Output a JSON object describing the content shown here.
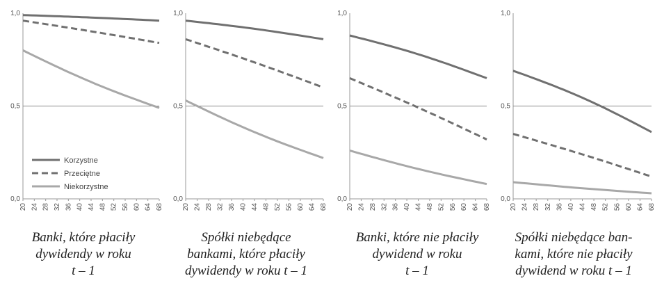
{
  "colors": {
    "korzystne": "#707070",
    "przecietne": "#707070",
    "niekorzystne": "#a8a8a8",
    "axis": "#9a9a9a",
    "tick_text": "#555555"
  },
  "legend": {
    "items": [
      {
        "label": "Korzystne",
        "style": "solid-dark"
      },
      {
        "label": "Przeciętne",
        "style": "dashed"
      },
      {
        "label": "Niekorzystne",
        "style": "solid-light"
      }
    ]
  },
  "captions": [
    {
      "lines": [
        "Banki, które płaciły",
        "dywidendy w roku",
        "t – 1"
      ]
    },
    {
      "lines": [
        "Spółki niebędące",
        "bankami, które płaciły",
        "dywidendy w roku t – 1"
      ]
    },
    {
      "lines": [
        "Banki, które nie płaciły",
        "dywidend w roku",
        "t – 1"
      ]
    },
    {
      "lines": [
        "Spółki niebędące ban-",
        "kami, które nie płaciły",
        "dywidend w roku t – 1"
      ]
    }
  ],
  "chart_data": [
    {
      "type": "line",
      "x": [
        20,
        68
      ],
      "xticks": [
        "20",
        "24",
        "28",
        "32",
        "36",
        "40",
        "44",
        "48",
        "52",
        "56",
        "60",
        "64",
        "68"
      ],
      "yticks": [
        "0,0",
        "0,5",
        "1,0"
      ],
      "ylim": [
        0,
        1
      ],
      "series": [
        {
          "name": "Korzystne",
          "y": [
            0.99,
            0.96
          ]
        },
        {
          "name": "Przeciętne",
          "y": [
            0.96,
            0.84
          ]
        },
        {
          "name": "Niekorzystne",
          "y": [
            0.8,
            0.49
          ]
        }
      ]
    },
    {
      "type": "line",
      "x": [
        20,
        68
      ],
      "xticks": [
        "20",
        "24",
        "28",
        "32",
        "36",
        "40",
        "44",
        "48",
        "52",
        "56",
        "60",
        "64",
        "68"
      ],
      "yticks": [
        "0,0",
        "0,5",
        "1,0"
      ],
      "ylim": [
        0,
        1
      ],
      "series": [
        {
          "name": "Korzystne",
          "y": [
            0.96,
            0.86
          ]
        },
        {
          "name": "Przeciętne",
          "y": [
            0.86,
            0.6
          ]
        },
        {
          "name": "Niekorzystne",
          "y": [
            0.53,
            0.22
          ]
        }
      ]
    },
    {
      "type": "line",
      "x": [
        20,
        68
      ],
      "xticks": [
        "20",
        "24",
        "28",
        "32",
        "36",
        "40",
        "44",
        "48",
        "52",
        "56",
        "60",
        "64",
        "68"
      ],
      "yticks": [
        "0,0",
        "0,5",
        "1,0"
      ],
      "ylim": [
        0,
        1
      ],
      "series": [
        {
          "name": "Korzystne",
          "y": [
            0.88,
            0.65
          ]
        },
        {
          "name": "Przeciętne",
          "y": [
            0.65,
            0.32
          ]
        },
        {
          "name": "Niekorzystne",
          "y": [
            0.26,
            0.08
          ]
        }
      ]
    },
    {
      "type": "line",
      "x": [
        20,
        68
      ],
      "xticks": [
        "20",
        "24",
        "28",
        "32",
        "36",
        "40",
        "44",
        "48",
        "52",
        "56",
        "60",
        "64",
        "68"
      ],
      "yticks": [
        "0,0",
        "0,5",
        "1,0"
      ],
      "ylim": [
        0,
        1
      ],
      "series": [
        {
          "name": "Korzystne",
          "y": [
            0.69,
            0.36
          ]
        },
        {
          "name": "Przeciętne",
          "y": [
            0.35,
            0.12
          ]
        },
        {
          "name": "Niekorzystne",
          "y": [
            0.09,
            0.03
          ]
        }
      ]
    }
  ]
}
